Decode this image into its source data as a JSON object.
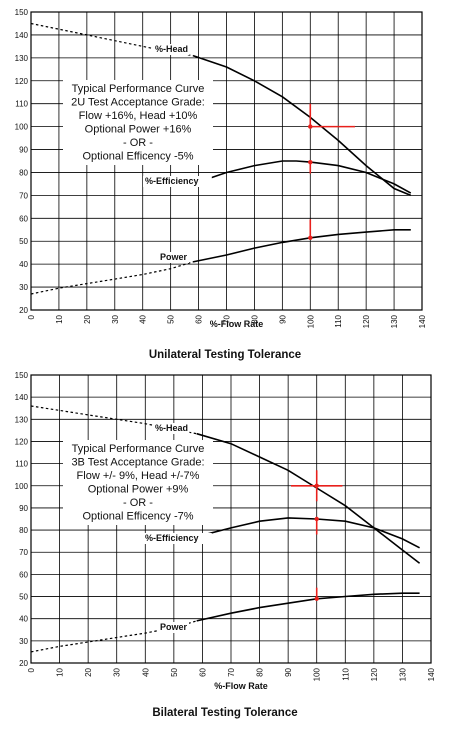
{
  "chart_data": [
    {
      "type": "line",
      "title": "Unilateral Testing Tolerance",
      "xlabel": "%-Flow Rate",
      "xlim": [
        0,
        140
      ],
      "ylim": [
        20,
        150
      ],
      "x_ticks": [
        0,
        10,
        20,
        30,
        40,
        50,
        60,
        70,
        80,
        90,
        100,
        110,
        120,
        130,
        140
      ],
      "y_ticks": [
        20,
        30,
        40,
        50,
        60,
        70,
        80,
        90,
        100,
        110,
        120,
        130,
        140,
        150
      ],
      "grid": true,
      "annotation_lines": [
        "Typical Performance Curve",
        "2U Test Acceptance Grade:",
        "Flow +16%, Head +10%",
        "Optional Power +16%",
        "- OR -",
        "Optional Efficency -5%"
      ],
      "series": [
        {
          "name": "%-Head",
          "x_dashed": [
            0,
            10,
            20,
            30,
            40,
            50,
            58
          ],
          "y_dashed": [
            145,
            142.5,
            140,
            137.5,
            135,
            132.5,
            131
          ],
          "x": [
            58,
            70,
            80,
            90,
            100,
            110,
            120,
            130,
            136
          ],
          "y": [
            131,
            126,
            120,
            113,
            104,
            94,
            83,
            73,
            70
          ]
        },
        {
          "name": "%-Efficiency",
          "x": [
            58,
            70,
            80,
            90,
            95,
            100,
            110,
            120,
            130,
            136
          ],
          "y": [
            75,
            80,
            83,
            85,
            85,
            84.5,
            83,
            80,
            75,
            71
          ]
        },
        {
          "name": "Power",
          "x_dashed": [
            0,
            10,
            20,
            30,
            40,
            50,
            58
          ],
          "y_dashed": [
            27,
            29.5,
            31.5,
            33.5,
            35.5,
            38,
            41
          ],
          "x": [
            58,
            70,
            80,
            90,
            100,
            110,
            120,
            130,
            136
          ],
          "y": [
            41,
            44,
            47,
            49.5,
            51.5,
            53,
            54,
            55,
            55
          ]
        }
      ],
      "tolerances": [
        {
          "x": 100,
          "y": 100,
          "x_minus": 0,
          "x_plus": 16,
          "y_minus": 0,
          "y_plus": 10
        },
        {
          "x": 100,
          "y": 84.5,
          "x_minus": 0,
          "x_plus": 0,
          "y_minus": 5,
          "y_plus": 0
        },
        {
          "x": 100,
          "y": 51.5,
          "x_minus": 0,
          "x_plus": 0,
          "y_minus": 0,
          "y_plus": 8
        }
      ]
    },
    {
      "type": "line",
      "title": "Bilateral Testing Tolerance",
      "xlabel": "%-Flow Rate",
      "xlim": [
        0,
        140
      ],
      "ylim": [
        20,
        150
      ],
      "x_ticks": [
        0,
        10,
        20,
        30,
        40,
        50,
        60,
        70,
        80,
        90,
        100,
        110,
        120,
        130,
        140
      ],
      "y_ticks": [
        20,
        30,
        40,
        50,
        60,
        70,
        80,
        90,
        100,
        110,
        120,
        130,
        140,
        150
      ],
      "grid": true,
      "annotation_lines": [
        "Typical Performance Curve",
        "3B Test Acceptance Grade:",
        "Flow +/- 9%, Head +/-7%",
        "Optional Power +9%",
        "- OR -",
        "Optional Efficency -7%"
      ],
      "series": [
        {
          "name": "%-Head",
          "x_dashed": [
            0,
            10,
            20,
            30,
            40,
            50,
            58
          ],
          "y_dashed": [
            136,
            134,
            132,
            130,
            128,
            125.5,
            123.5
          ],
          "x": [
            58,
            70,
            80,
            90,
            100,
            110,
            120,
            130,
            136
          ],
          "y": [
            123.5,
            119,
            113,
            107,
            99,
            91,
            81,
            71,
            65
          ]
        },
        {
          "name": "%-Efficiency",
          "x": [
            58,
            70,
            80,
            90,
            100,
            110,
            120,
            130,
            136
          ],
          "y": [
            77,
            81,
            84,
            85.5,
            85,
            84,
            81,
            76,
            72
          ]
        },
        {
          "name": "Power",
          "x_dashed": [
            0,
            10,
            20,
            30,
            40,
            50,
            58
          ],
          "y_dashed": [
            25,
            27.5,
            29.5,
            31.5,
            33.5,
            36,
            39
          ],
          "x": [
            58,
            70,
            80,
            90,
            100,
            110,
            120,
            130,
            136
          ],
          "y": [
            39,
            42.5,
            45,
            47,
            49,
            50,
            51,
            51.5,
            51.5
          ]
        }
      ],
      "tolerances": [
        {
          "x": 100,
          "y": 100,
          "x_minus": 9,
          "x_plus": 9,
          "y_minus": 7,
          "y_plus": 7
        },
        {
          "x": 100,
          "y": 85,
          "x_minus": 0,
          "x_plus": 0,
          "y_minus": 7,
          "y_plus": 0
        },
        {
          "x": 100,
          "y": 49,
          "x_minus": 0,
          "x_plus": 0,
          "y_minus": 0,
          "y_plus": 5
        }
      ]
    }
  ],
  "colors": {
    "curve": "#000000",
    "grid": "#000000",
    "tolerance": "#e8201c"
  }
}
